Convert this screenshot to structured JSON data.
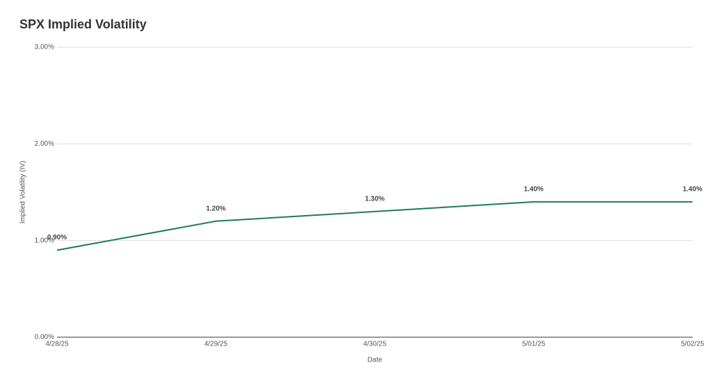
{
  "chart_data": {
    "type": "line",
    "title": "SPX Implied Volatility",
    "x_label": "Date",
    "y_label": "Implied Volatility (IV)",
    "categories": [
      "4/28/25",
      "4/29/25",
      "4/30/25",
      "5/01/25",
      "5/02/25"
    ],
    "series": [
      {
        "name": "Implied Volatility (IV)",
        "color": "#1e7b55",
        "values": [
          0.9,
          1.2,
          1.3,
          1.4,
          1.4
        ],
        "value_labels": [
          "0.90%",
          "1.20%",
          "1.30%",
          "1.40%",
          "1.40%"
        ]
      }
    ],
    "ylim": [
      0,
      3
    ],
    "yticks": [
      {
        "value": 0,
        "label": "0.00%"
      },
      {
        "value": 1,
        "label": "1.00%"
      },
      {
        "value": 2,
        "label": "2.00%"
      },
      {
        "value": 3,
        "label": "3.00%"
      }
    ],
    "grid": true
  }
}
